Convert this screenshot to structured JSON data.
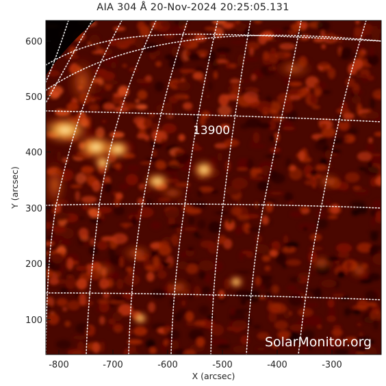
{
  "title": "AIA 304 Å 20-Nov-2024 20:25:05.131",
  "xaxis": {
    "label": "X (arcsec)",
    "ticks": [
      "-800",
      "-700",
      "-600",
      "-500",
      "-400",
      "-300"
    ]
  },
  "yaxis": {
    "label": "Y (arcsec)",
    "ticks": [
      "100",
      "200",
      "300",
      "400",
      "500",
      "600"
    ]
  },
  "active_region": "13900",
  "watermark": "SolarMonitor.org",
  "colors": {
    "background": "#000000",
    "plasma_dark": "#5a0800",
    "plasma_mid": "#c83a05",
    "plasma_bright": "#ffd27a",
    "grid": "#ffffff"
  }
}
